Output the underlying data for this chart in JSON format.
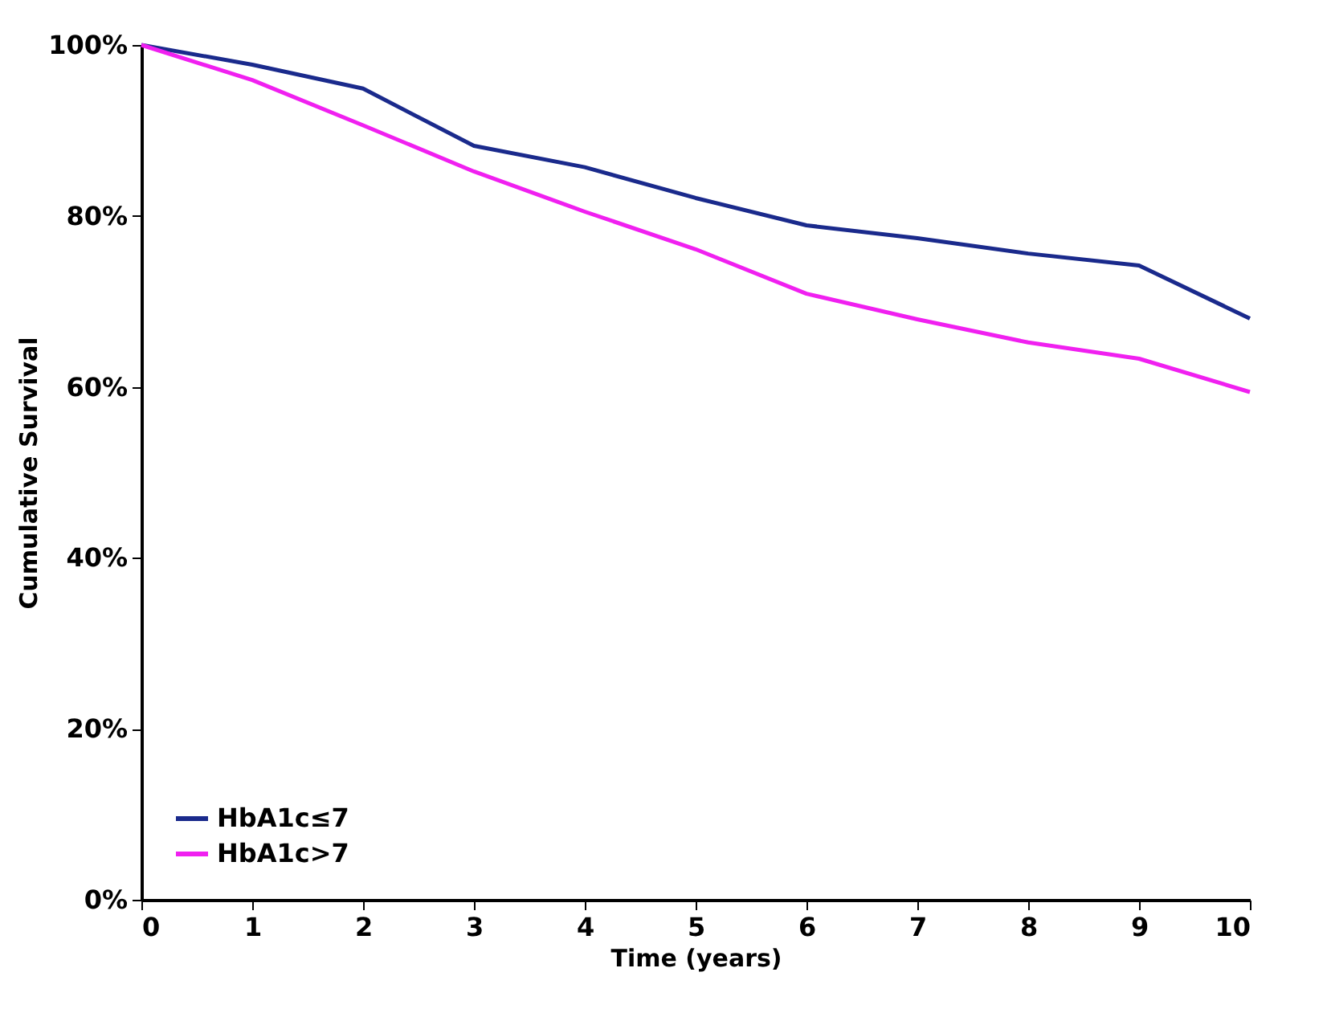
{
  "chart_data": {
    "type": "line",
    "xlabel": "Time (years)",
    "ylabel": "Cumulative Survival",
    "x": [
      0,
      1,
      2,
      3,
      4,
      5,
      6,
      7,
      8,
      9,
      10
    ],
    "series": [
      {
        "name": "HbA1c≤7",
        "color": "#1a2a8c",
        "values": [
          100,
          97.7,
          94.9,
          88.2,
          85.7,
          82.1,
          78.9,
          77.4,
          75.6,
          74.2,
          68.0
        ]
      },
      {
        "name": "HbA1c>7",
        "color": "#f020f0",
        "values": [
          100,
          95.9,
          90.6,
          85.2,
          80.5,
          76.1,
          70.9,
          67.9,
          65.2,
          63.3,
          59.4
        ]
      }
    ],
    "xlim": [
      0,
      10
    ],
    "xticks": [
      0,
      1,
      2,
      3,
      4,
      5,
      6,
      7,
      8,
      9,
      10
    ],
    "ylim": [
      0,
      100
    ],
    "yticks": [
      {
        "value": 0,
        "label": "0%"
      },
      {
        "value": 20,
        "label": "20%"
      },
      {
        "value": 40,
        "label": "40%"
      },
      {
        "value": 60,
        "label": "60%"
      },
      {
        "value": 80,
        "label": "80%"
      },
      {
        "value": 100,
        "label": "100%"
      }
    ],
    "grid": false,
    "legend": "bottom left",
    "marker": "none",
    "line_style": "solid"
  }
}
